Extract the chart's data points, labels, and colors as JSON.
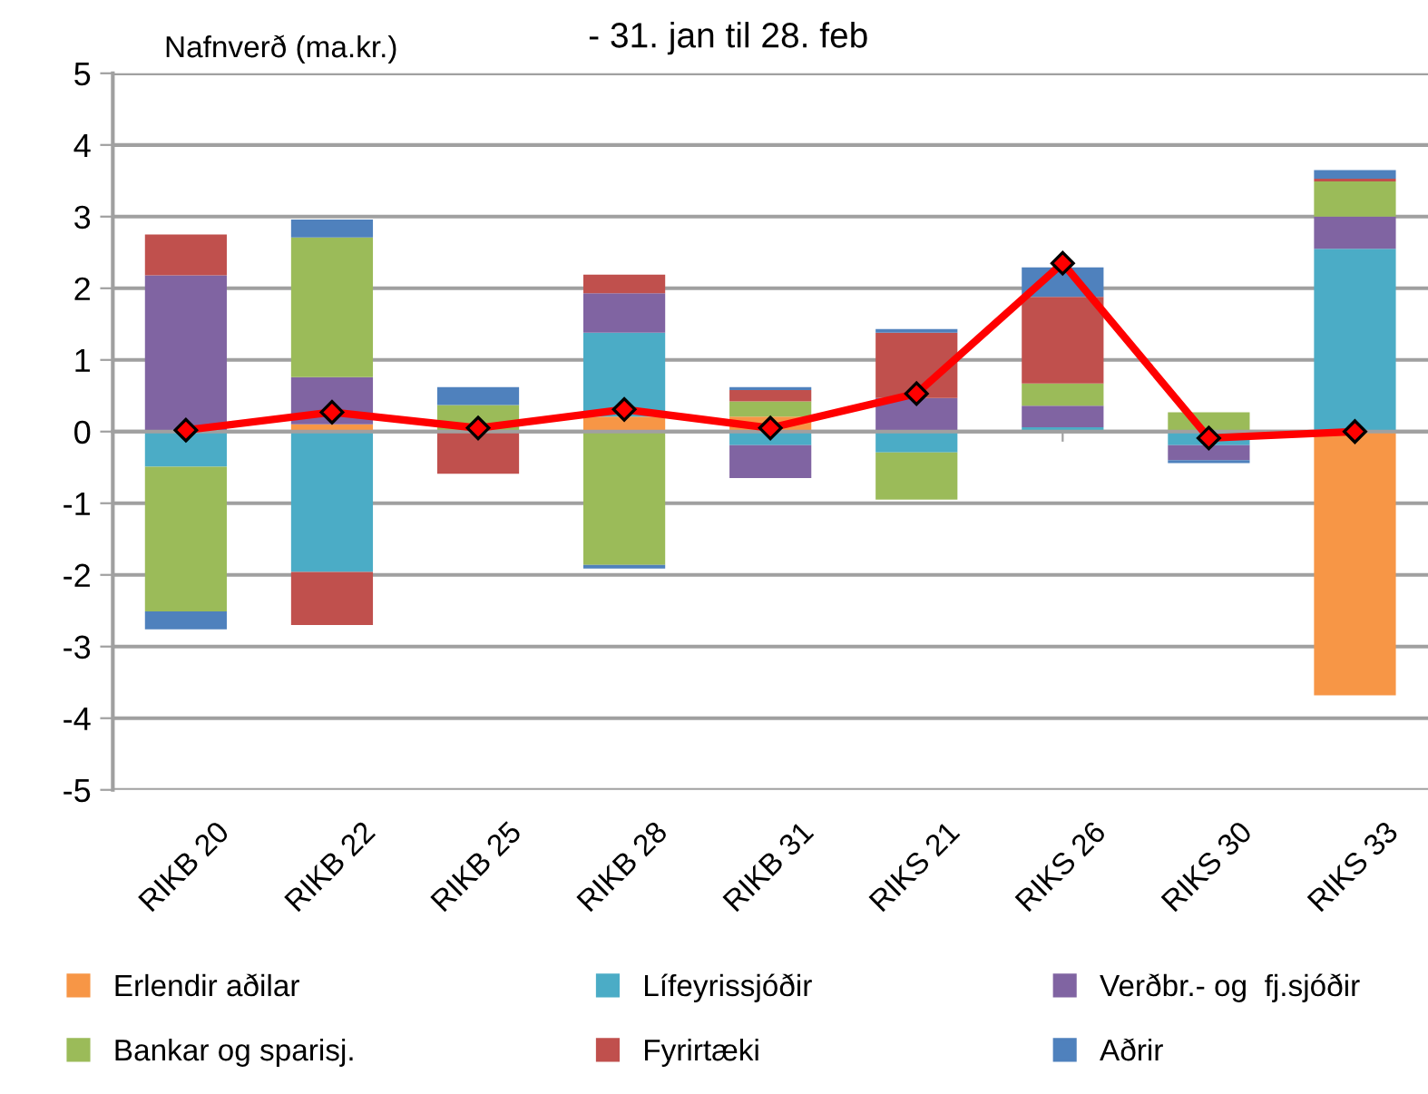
{
  "chart_data": {
    "type": "bar",
    "stacked": true,
    "title": "- 31. jan til 28. feb",
    "ylabel": "Nafnverð (ma.kr.)",
    "categories": [
      "RIKB 20",
      "RIKB 22",
      "RIKB 25",
      "RIKB 28",
      "RIKB 31",
      "RIKS 21",
      "RIKS 26",
      "RIKS 30",
      "RIKS 33"
    ],
    "series": [
      {
        "name": "Erlendir aðilar",
        "color": "#f79646",
        "values": [
          null,
          0.1,
          null,
          0.21,
          0.21,
          null,
          null,
          null,
          -3.68
        ]
      },
      {
        "name": "Lífeyrissjóðir",
        "color": "#4bacc6",
        "values": [
          -0.49,
          -1.96,
          null,
          1.17,
          -0.19,
          -0.29,
          0.06,
          -0.19,
          2.55
        ]
      },
      {
        "name": "Verðbr.- og  fj.sjóðir",
        "color": "#8064a2",
        "values": [
          2.18,
          0.66,
          null,
          0.55,
          -0.46,
          0.47,
          0.3,
          -0.21,
          0.45
        ]
      },
      {
        "name": "Bankar og sparisj.",
        "color": "#9bbb59",
        "values": [
          -2.02,
          1.95,
          0.37,
          -1.86,
          0.21,
          -0.66,
          0.31,
          0.27,
          0.49
        ]
      },
      {
        "name": "Fyrirtæki",
        "color": "#c0504d",
        "values": [
          0.57,
          -0.74,
          -0.59,
          0.26,
          0.16,
          0.91,
          1.21,
          null,
          0.04
        ]
      },
      {
        "name": "Aðrir",
        "color": "#4f81bd",
        "values": [
          -0.25,
          0.25,
          0.25,
          -0.05,
          0.04,
          0.05,
          0.41,
          -0.04,
          0.12
        ]
      },
      {
        "type": "line",
        "color": "#ff0000",
        "marker": "diamond",
        "values": [
          0.02,
          0.27,
          0.05,
          0.31,
          0.05,
          0.53,
          2.35,
          -0.09,
          0.0
        ]
      }
    ],
    "ylim": [
      -5,
      5
    ],
    "yticks": [
      -5,
      -4,
      -3,
      -2,
      -1,
      0,
      1,
      2,
      3,
      4,
      5
    ],
    "grid": "y",
    "legend": "bottom"
  }
}
